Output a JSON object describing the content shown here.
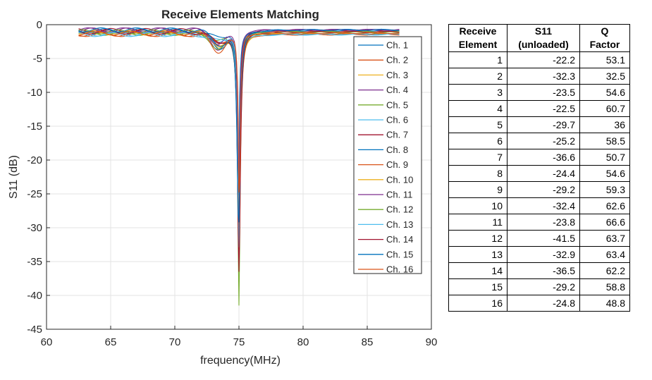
{
  "chart_data": {
    "type": "line",
    "title": "Receive Elements Matching",
    "xlabel": "frequency(MHz)",
    "ylabel": "S11 (dB)",
    "xlim": [
      60,
      90
    ],
    "ylim": [
      -45,
      0
    ],
    "x_ticks": [
      60,
      65,
      70,
      75,
      80,
      85,
      90
    ],
    "y_ticks": [
      0,
      -5,
      -10,
      -15,
      -20,
      -25,
      -30,
      -35,
      -40,
      -45
    ],
    "grid": true,
    "legend_position": "top-right",
    "colors": [
      "#0072BD",
      "#D95319",
      "#EDB120",
      "#7E2F8E",
      "#77AC30",
      "#4DBEEE",
      "#A2142F",
      "#0072BD",
      "#D95319",
      "#EDB120",
      "#7E2F8E",
      "#77AC30",
      "#4DBEEE",
      "#A2142F",
      "#0072BD",
      "#D95319"
    ],
    "series": [
      {
        "name": "Ch. 1",
        "min_x": 74.95,
        "min_y": -22.2
      },
      {
        "name": "Ch. 2",
        "min_x": 75.0,
        "min_y": -32.3
      },
      {
        "name": "Ch. 3",
        "min_x": 74.97,
        "min_y": -23.5
      },
      {
        "name": "Ch. 4",
        "min_x": 75.02,
        "min_y": -22.5
      },
      {
        "name": "Ch. 5",
        "min_x": 75.0,
        "min_y": -29.7
      },
      {
        "name": "Ch. 6",
        "min_x": 74.98,
        "min_y": -25.2
      },
      {
        "name": "Ch. 7",
        "min_x": 75.0,
        "min_y": -36.6
      },
      {
        "name": "Ch. 8",
        "min_x": 74.96,
        "min_y": -24.4
      },
      {
        "name": "Ch. 9",
        "min_x": 75.01,
        "min_y": -29.2
      },
      {
        "name": "Ch. 10",
        "min_x": 75.0,
        "min_y": -32.4
      },
      {
        "name": "Ch. 11",
        "min_x": 74.99,
        "min_y": -23.8
      },
      {
        "name": "Ch. 12",
        "min_x": 75.0,
        "min_y": -41.5
      },
      {
        "name": "Ch. 13",
        "min_x": 75.0,
        "min_y": -32.9
      },
      {
        "name": "Ch. 14",
        "min_x": 75.0,
        "min_y": -36.5
      },
      {
        "name": "Ch. 15",
        "min_x": 74.97,
        "min_y": -29.2
      },
      {
        "name": "Ch. 16",
        "min_x": 75.03,
        "min_y": -24.8
      }
    ],
    "x_range_data": [
      62.5,
      87.5
    ]
  },
  "table": {
    "headers": [
      {
        "line1": "Receive",
        "line2": "Element"
      },
      {
        "line1": "S11",
        "line2": "(unloaded)"
      },
      {
        "line1": "Q",
        "line2": "Factor"
      }
    ],
    "rows": [
      [
        "1",
        "-22.2",
        "53.1"
      ],
      [
        "2",
        "-32.3",
        "32.5"
      ],
      [
        "3",
        "-23.5",
        "54.6"
      ],
      [
        "4",
        "-22.5",
        "60.7"
      ],
      [
        "5",
        "-29.7",
        "36"
      ],
      [
        "6",
        "-25.2",
        "58.5"
      ],
      [
        "7",
        "-36.6",
        "50.7"
      ],
      [
        "8",
        "-24.4",
        "54.6"
      ],
      [
        "9",
        "-29.2",
        "59.3"
      ],
      [
        "10",
        "-32.4",
        "62.6"
      ],
      [
        "11",
        "-23.8",
        "66.6"
      ],
      [
        "12",
        "-41.5",
        "63.7"
      ],
      [
        "13",
        "-32.9",
        "63.4"
      ],
      [
        "14",
        "-36.5",
        "62.2"
      ],
      [
        "15",
        "-29.2",
        "58.8"
      ],
      [
        "16",
        "-24.8",
        "48.8"
      ]
    ]
  }
}
